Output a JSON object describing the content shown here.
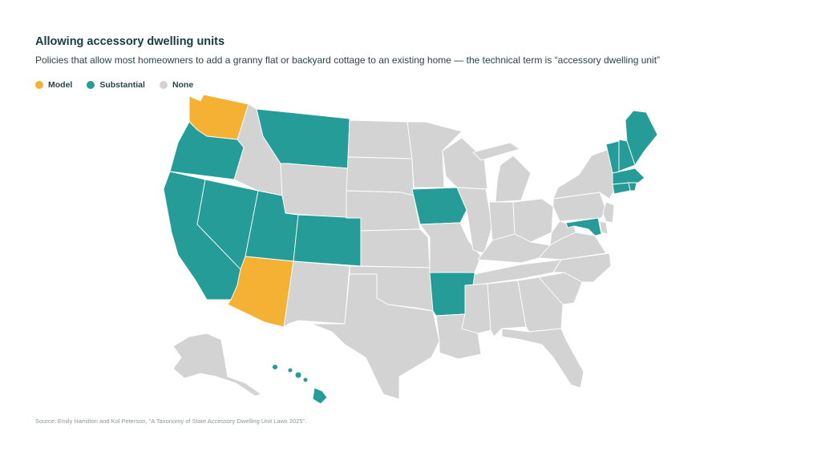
{
  "title": "Allowing accessory dwelling units",
  "subtitle": "Policies that allow most homeowners to add a granny flat or backyard cottage to an existing home — the technical term is “accessory dwelling unit”",
  "legend": [
    {
      "label": "Model",
      "color": "#f5b133"
    },
    {
      "label": "Substantial",
      "color": "#259c97"
    },
    {
      "label": "None",
      "color": "#d3d3d3"
    }
  ],
  "source": "Source: Emily Hamilton and Kol Peterson, \"A Taxonomy of State Accessory Dwelling Unit Laws 2025\".",
  "map_data": {
    "categories": {
      "Model": "#f5b133",
      "Substantial": "#259c97",
      "None": "#d3d3d3"
    },
    "states": {
      "WA": "Model",
      "AZ": "Model",
      "OR": "Substantial",
      "CA": "Substantial",
      "NV": "Substantial",
      "UT": "Substantial",
      "CO": "Substantial",
      "MT": "Substantial",
      "IA": "Substantial",
      "AR": "Substantial",
      "HI": "Substantial",
      "ME": "Substantial",
      "NH": "Substantial",
      "VT": "Substantial",
      "MA": "Substantial",
      "RI": "Substantial",
      "CT": "Substantial",
      "MD": "Substantial",
      "ID": "None",
      "WY": "None",
      "ND": "None",
      "SD": "None",
      "NE": "None",
      "KS": "None",
      "OK": "None",
      "TX": "None",
      "NM": "None",
      "MN": "None",
      "WI": "None",
      "MI": "None",
      "IL": "None",
      "IN": "None",
      "OH": "None",
      "MO": "None",
      "KY": "None",
      "TN": "None",
      "MS": "None",
      "AL": "None",
      "GA": "None",
      "FL": "None",
      "SC": "None",
      "NC": "None",
      "VA": "None",
      "WV": "None",
      "PA": "None",
      "NY": "None",
      "NJ": "None",
      "DE": "None",
      "LA": "None",
      "AK": "None"
    }
  }
}
